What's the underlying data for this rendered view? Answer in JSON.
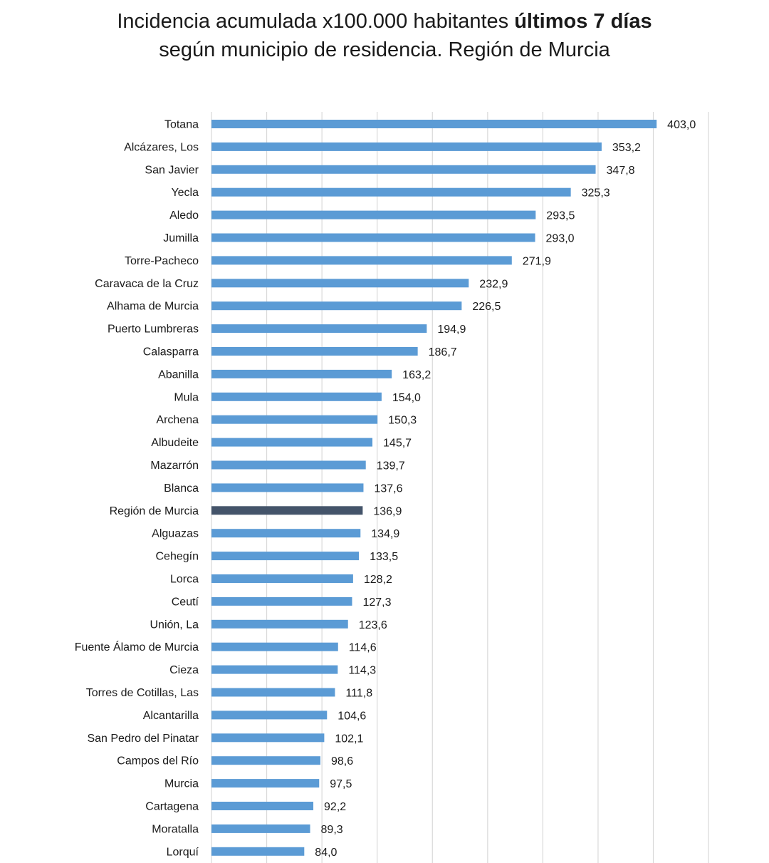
{
  "title": {
    "line1_prefix": "Incidencia acumulada x100.000 habitantes ",
    "line1_bold": "últimos 7 días",
    "line2": "según municipio de residencia. Región de Murcia"
  },
  "chart_data": {
    "type": "bar",
    "orientation": "horizontal",
    "title": "Incidencia acumulada x100.000 habitantes últimos 7 días según municipio de residencia. Región de Murcia",
    "xlim": [
      0,
      450
    ],
    "grid": true,
    "colors": {
      "bar": "#5b9bd5",
      "highlight": "#44546a",
      "grid": "#d9d9d9"
    },
    "highlight_category": "Región de Murcia",
    "categories": [
      "Totana",
      "Alcázares, Los",
      "San Javier",
      "Yecla",
      "Aledo",
      "Jumilla",
      "Torre-Pacheco",
      "Caravaca de la Cruz",
      "Alhama de Murcia",
      "Puerto Lumbreras",
      "Calasparra",
      "Abanilla",
      "Mula",
      "Archena",
      "Albudeite",
      "Mazarrón",
      "Blanca",
      "Región de Murcia",
      "Alguazas",
      "Cehegín",
      "Lorca",
      "Ceutí",
      "Unión, La",
      "Fuente Álamo de Murcia",
      "Cieza",
      "Torres de Cotillas, Las",
      "Alcantarilla",
      "San Pedro del Pinatar",
      "Campos del Río",
      "Murcia",
      "Cartagena",
      "Moratalla",
      "Lorquí"
    ],
    "values": [
      403.0,
      353.2,
      347.8,
      325.3,
      293.5,
      293.0,
      271.9,
      232.9,
      226.5,
      194.9,
      186.7,
      163.2,
      154.0,
      150.3,
      145.7,
      139.7,
      137.6,
      136.9,
      134.9,
      133.5,
      128.2,
      127.3,
      123.6,
      114.6,
      114.3,
      111.8,
      104.6,
      102.1,
      98.6,
      97.5,
      92.2,
      89.3,
      84.0
    ],
    "value_labels": [
      "403,0",
      "353,2",
      "347,8",
      "325,3",
      "293,5",
      "293,0",
      "271,9",
      "232,9",
      "226,5",
      "194,9",
      "186,7",
      "163,2",
      "154,0",
      "150,3",
      "145,7",
      "139,7",
      "137,6",
      "136,9",
      "134,9",
      "133,5",
      "128,2",
      "127,3",
      "123,6",
      "114,6",
      "114,3",
      "111,8",
      "104,6",
      "102,1",
      "98,6",
      "97,5",
      "92,2",
      "89,3",
      "84,0"
    ]
  }
}
